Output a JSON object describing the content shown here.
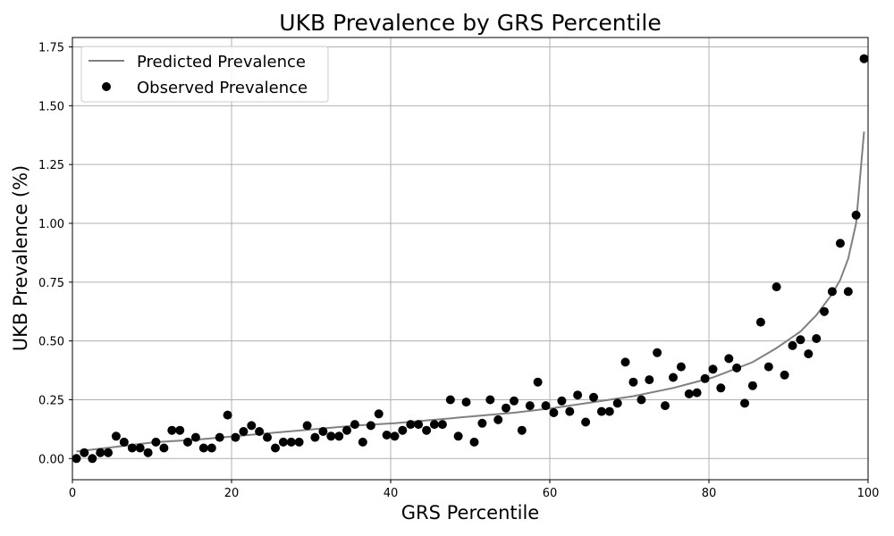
{
  "chart_data": {
    "type": "scatter",
    "title": "UKB Prevalence by GRS Percentile",
    "xlabel": "GRS Percentile",
    "ylabel": "UKB Prevalence (%)",
    "xlim": [
      0,
      100
    ],
    "ylim": [
      -0.09,
      1.79
    ],
    "x_ticks": [
      0,
      20,
      40,
      60,
      80,
      100
    ],
    "x_tick_labels": [
      "0",
      "20",
      "40",
      "60",
      "80",
      "100"
    ],
    "y_ticks": [
      0.0,
      0.25,
      0.5,
      0.75,
      1.0,
      1.25,
      1.5,
      1.75
    ],
    "y_tick_labels": [
      "0.00",
      "0.25",
      "0.50",
      "0.75",
      "1.00",
      "1.25",
      "1.50",
      "1.75"
    ],
    "grid": true,
    "legend_position": "top-left",
    "series": [
      {
        "name": "Predicted Prevalence",
        "kind": "line",
        "color": "#808080",
        "x": [
          0.5,
          5.5,
          10.5,
          15.5,
          20.5,
          25.5,
          30.5,
          35.5,
          40.5,
          45.5,
          50.5,
          55.5,
          60.5,
          65.5,
          70.5,
          75.5,
          80.5,
          85.5,
          88.5,
          91.5,
          93.5,
          95.5,
          96.5,
          97.5,
          98.5,
          99.5
        ],
        "y": [
          0.03,
          0.05,
          0.07,
          0.08,
          0.095,
          0.11,
          0.125,
          0.14,
          0.15,
          0.165,
          0.18,
          0.195,
          0.215,
          0.24,
          0.265,
          0.3,
          0.345,
          0.41,
          0.47,
          0.54,
          0.61,
          0.7,
          0.76,
          0.85,
          1.0,
          1.39
        ]
      },
      {
        "name": "Observed Prevalence",
        "kind": "scatter",
        "color": "#000000",
        "x": [
          0.5,
          1.5,
          2.5,
          3.5,
          4.5,
          5.5,
          6.5,
          7.5,
          8.5,
          9.5,
          10.5,
          11.5,
          12.5,
          13.5,
          14.5,
          15.5,
          16.5,
          17.5,
          18.5,
          19.5,
          20.5,
          21.5,
          22.5,
          23.5,
          24.5,
          25.5,
          26.5,
          27.5,
          28.5,
          29.5,
          30.5,
          31.5,
          32.5,
          33.5,
          34.5,
          35.5,
          36.5,
          37.5,
          38.5,
          39.5,
          40.5,
          41.5,
          42.5,
          43.5,
          44.5,
          45.5,
          46.5,
          47.5,
          48.5,
          49.5,
          50.5,
          51.5,
          52.5,
          53.5,
          54.5,
          55.5,
          56.5,
          57.5,
          58.5,
          59.5,
          60.5,
          61.5,
          62.5,
          63.5,
          64.5,
          65.5,
          66.5,
          67.5,
          68.5,
          69.5,
          70.5,
          71.5,
          72.5,
          73.5,
          74.5,
          75.5,
          76.5,
          77.5,
          78.5,
          79.5,
          80.5,
          81.5,
          82.5,
          83.5,
          84.5,
          85.5,
          86.5,
          87.5,
          88.5,
          89.5,
          90.5,
          91.5,
          92.5,
          93.5,
          94.5,
          95.5,
          96.5,
          97.5,
          98.5,
          99.5
        ],
        "y": [
          0.0,
          0.025,
          0.0,
          0.025,
          0.025,
          0.095,
          0.07,
          0.045,
          0.045,
          0.025,
          0.07,
          0.045,
          0.12,
          0.12,
          0.07,
          0.09,
          0.045,
          0.045,
          0.09,
          0.185,
          0.09,
          0.115,
          0.14,
          0.115,
          0.09,
          0.045,
          0.07,
          0.07,
          0.07,
          0.14,
          0.09,
          0.115,
          0.095,
          0.095,
          0.12,
          0.145,
          0.07,
          0.14,
          0.19,
          0.1,
          0.095,
          0.12,
          0.145,
          0.145,
          0.12,
          0.145,
          0.145,
          0.25,
          0.095,
          0.24,
          0.07,
          0.15,
          0.25,
          0.165,
          0.215,
          0.245,
          0.12,
          0.225,
          0.325,
          0.225,
          0.195,
          0.245,
          0.2,
          0.27,
          0.155,
          0.26,
          0.2,
          0.2,
          0.235,
          0.41,
          0.325,
          0.25,
          0.335,
          0.45,
          0.225,
          0.345,
          0.39,
          0.275,
          0.28,
          0.34,
          0.38,
          0.3,
          0.425,
          0.385,
          0.235,
          0.31,
          0.58,
          0.39,
          0.73,
          0.355,
          0.48,
          0.505,
          0.445,
          0.51,
          0.625,
          0.71,
          0.915,
          0.71,
          1.035,
          1.7
        ]
      }
    ]
  }
}
